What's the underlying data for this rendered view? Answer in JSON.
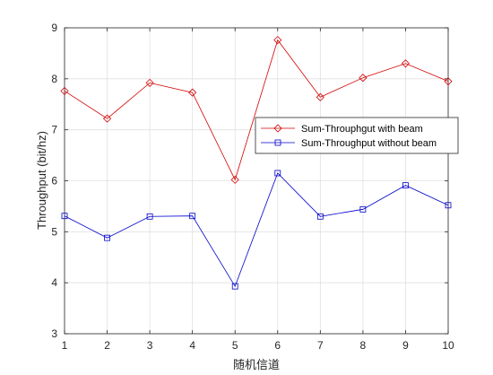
{
  "chart_data": {
    "type": "line",
    "title": "",
    "xlabel": "随机信道",
    "ylabel": "Throughput (bit/hz)",
    "xlim": [
      1,
      10
    ],
    "ylim": [
      3,
      9
    ],
    "x": [
      1,
      2,
      3,
      4,
      5,
      6,
      7,
      8,
      9,
      10
    ],
    "x_ticks": [
      "1",
      "2",
      "3",
      "4",
      "5",
      "6",
      "7",
      "8",
      "9",
      "10"
    ],
    "y_ticks": [
      "3",
      "4",
      "5",
      "6",
      "7",
      "8",
      "9"
    ],
    "grid": true,
    "legend_position": "center-right",
    "series": [
      {
        "name": "Sum-Throuphgut with beam",
        "color": "#d40000",
        "marker": "diamond",
        "values": [
          7.76,
          7.22,
          7.92,
          7.73,
          6.02,
          8.76,
          7.64,
          8.02,
          8.3,
          7.95
        ]
      },
      {
        "name": "Sum-Throughput without beam",
        "color": "#0000cc",
        "marker": "square",
        "values": [
          5.31,
          4.88,
          5.3,
          5.31,
          3.93,
          6.15,
          5.3,
          5.44,
          5.91,
          5.52
        ]
      }
    ]
  }
}
